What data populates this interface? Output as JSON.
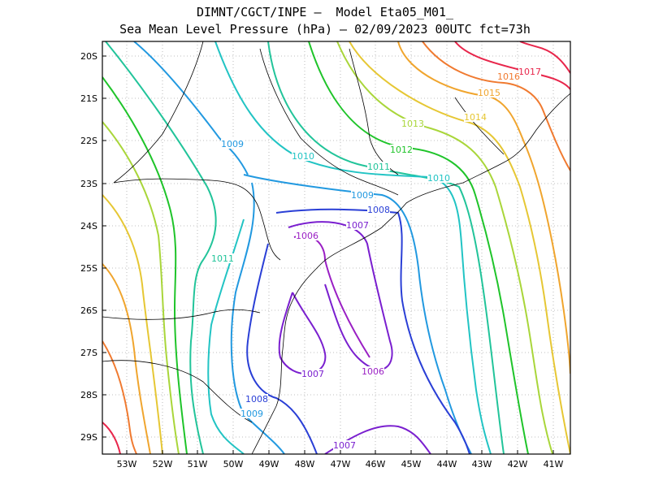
{
  "title_line1": "DIMNT/CGCT/INPE –  Model Eta05_M01_",
  "title_line2": "Sea Mean Level Pressure (hPa) – 02/09/2023 00UTC fct=73h",
  "lat_ticks": [
    "20S",
    "21S",
    "22S",
    "23S",
    "24S",
    "25S",
    "26S",
    "27S",
    "28S",
    "29S"
  ],
  "lon_ticks": [
    "53W",
    "52W",
    "51W",
    "50W",
    "49W",
    "48W",
    "47W",
    "46W",
    "45W",
    "44W",
    "43W",
    "42W",
    "41W"
  ],
  "contour_labels": [
    {
      "text": "1017",
      "color": "#e8264b"
    },
    {
      "text": "1016",
      "color": "#f07a30"
    },
    {
      "text": "1015",
      "color": "#f0a52e"
    },
    {
      "text": "1014",
      "color": "#e6c734"
    },
    {
      "text": "1013",
      "color": "#a9d63a"
    },
    {
      "text": "1012",
      "color": "#1fc42a"
    },
    {
      "text": "1011",
      "color": "#22c49a"
    },
    {
      "text": "1011",
      "color": "#22c49a"
    },
    {
      "text": "1010",
      "color": "#22c4c4"
    },
    {
      "text": "1010",
      "color": "#22c4c4"
    },
    {
      "text": "1009",
      "color": "#2299e0"
    },
    {
      "text": "1009",
      "color": "#2299e0"
    },
    {
      "text": "1009",
      "color": "#2299e0"
    },
    {
      "text": "1008",
      "color": "#2a3fd6"
    },
    {
      "text": "1008",
      "color": "#2a3fd6"
    },
    {
      "text": "1007",
      "color": "#7a1fcf"
    },
    {
      "text": "1007",
      "color": "#7a1fcf"
    },
    {
      "text": "1007",
      "color": "#7a1fcf"
    },
    {
      "text": "1006",
      "color": "#9a1fc4"
    },
    {
      "text": "1006",
      "color": "#9a1fc4"
    }
  ]
}
